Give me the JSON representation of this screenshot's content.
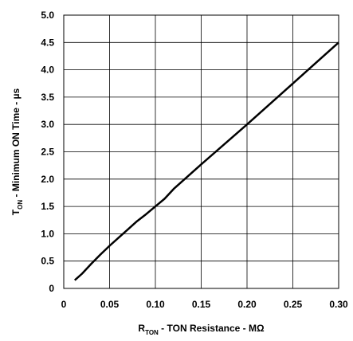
{
  "chart_data": {
    "type": "line",
    "title": "",
    "xlabel": {
      "main": "R",
      "sub": "TON",
      "rest": " - TON Resistance -  MΩ"
    },
    "ylabel": {
      "main": "T",
      "sub": "ON",
      "rest": " - Minimum ON Time - µs"
    },
    "xlim": [
      0,
      0.3
    ],
    "ylim": [
      0,
      5.0
    ],
    "x_ticks": [
      0,
      0.05,
      0.1,
      0.15,
      0.2,
      0.25,
      0.3
    ],
    "x_tick_labels": [
      "0",
      "0.05",
      "0.10",
      "0.15",
      "0.20",
      "0.25",
      "0.30"
    ],
    "y_ticks": [
      0,
      0.5,
      1.0,
      1.5,
      2.0,
      2.5,
      3.0,
      3.5,
      4.0,
      4.5,
      5.0
    ],
    "y_tick_labels": [
      "0",
      "0.5",
      "1.0",
      "1.5",
      "2.0",
      "2.5",
      "3.0",
      "3.5",
      "4.0",
      "4.5",
      "5.0"
    ],
    "grid": true,
    "series": [
      {
        "color": "#000000",
        "x": [
          0.012,
          0.02,
          0.03,
          0.04,
          0.05,
          0.06,
          0.07,
          0.08,
          0.09,
          0.1,
          0.11,
          0.12,
          0.15,
          0.2,
          0.25,
          0.3
        ],
        "y": [
          0.15,
          0.27,
          0.45,
          0.62,
          0.78,
          0.93,
          1.08,
          1.23,
          1.36,
          1.5,
          1.64,
          1.82,
          2.27,
          3.0,
          3.75,
          4.5
        ]
      }
    ]
  }
}
